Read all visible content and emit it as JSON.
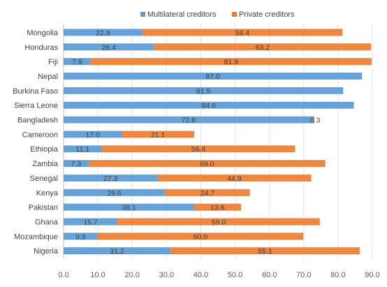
{
  "chart_data": {
    "type": "bar",
    "orientation": "horizontal",
    "stacked": true,
    "categories": [
      "Mongolia",
      "Honduras",
      "Fiji",
      "Nepal",
      "Burkina Faso",
      "Sierra Leone",
      "Bangladesh",
      "Cameroon",
      "Ethiopia",
      "Zambia",
      "Senegal",
      "Kenya",
      "Pakistan",
      "Ghana",
      "Mozambique",
      "Nigeria"
    ],
    "series": [
      {
        "name": "Multilateral creditors",
        "color": "#5B9BD5",
        "values": [
          22.9,
          26.4,
          7.9,
          87.0,
          81.5,
          84.6,
          72.8,
          17.0,
          11.1,
          7.3,
          27.3,
          29.6,
          38.1,
          15.7,
          9.9,
          31.2
        ],
        "labels": [
          "22.9",
          "26.4",
          "7.9",
          "87.0",
          "81.5",
          "84.6",
          "72.8",
          "17.0",
          "11.1",
          "7.3",
          "27.3",
          "29.6",
          "38.1",
          "15.7",
          "9.9",
          "31.2"
        ]
      },
      {
        "name": "Private creditors",
        "color": "#ED7D31",
        "values": [
          58.4,
          63.2,
          81.9,
          0,
          0,
          0,
          0.3,
          21.1,
          56.4,
          69.0,
          44.9,
          24.7,
          13.6,
          59.0,
          60.0,
          55.1
        ],
        "labels": [
          "58.4",
          "63.2",
          "81.9",
          "",
          "",
          "",
          "0.3",
          "21.1",
          "56.4",
          "69.0",
          "44.9",
          "24.7",
          "13.6",
          "59.0",
          "60.0",
          "55.1"
        ]
      }
    ],
    "xlim": [
      0,
      90
    ],
    "xticks": [
      "0.0",
      "10.0",
      "20.0",
      "30.0",
      "40.0",
      "50.0",
      "60.0",
      "70.0",
      "80.0",
      "90.0"
    ],
    "grid": true,
    "legend_position": "top"
  }
}
